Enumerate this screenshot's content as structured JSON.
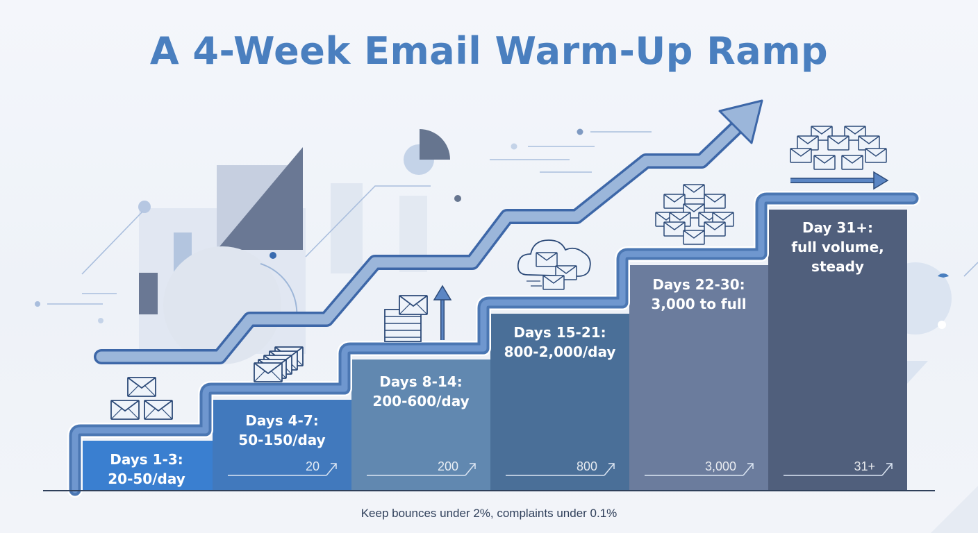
{
  "title": "A 4-Week Email Warm-Up Ramp",
  "footer": "Keep bounces under 2%, complaints under 0.1%",
  "colors": {
    "title": "#4a7fbf",
    "step1": "#3a7fd0",
    "step2": "#4179bd",
    "step3": "#6188b0",
    "step4": "#4a6f98",
    "step5": "#6b7c9d",
    "step6": "#505f7c",
    "line": "#4b77b3"
  },
  "steps": [
    {
      "label_line1": "Days 1-3:",
      "label_line2": "20-50/day",
      "marker": ""
    },
    {
      "label_line1": "Days 4-7:",
      "label_line2": "50-150/day",
      "marker": "20"
    },
    {
      "label_line1": "Days 8-14:",
      "label_line2": "200-600/day",
      "marker": "200"
    },
    {
      "label_line1": "Days 15-21:",
      "label_line2": "800-2,000/day",
      "marker": "800"
    },
    {
      "label_line1": "Days 22-30:",
      "label_line2": "3,000 to full",
      "marker": "3,000"
    },
    {
      "label_line1": "Day 31+:",
      "label_line2": "full volume,",
      "label_line3": "steady",
      "marker": "31+"
    }
  ],
  "icons": [
    "envelope-stack-icon",
    "envelope-bundle-icon",
    "mail-tray-upload-icon",
    "cloud-mail-icon",
    "envelope-cluster-icon",
    "envelope-flow-icon",
    "growth-arrow-icon"
  ]
}
